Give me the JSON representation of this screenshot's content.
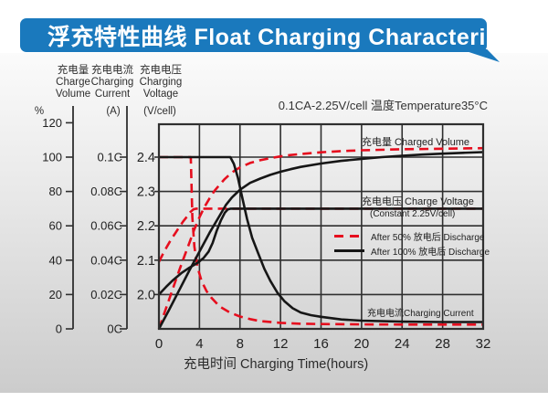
{
  "banner": {
    "title": "浮充特性曲线 Float Charging Characteristics",
    "bg_color": "#1a79bd",
    "text_color": "#ffffff"
  },
  "axes_header": {
    "volume": {
      "line1": "充电量",
      "line2": "Charge",
      "line3": "Volume",
      "unit": "%"
    },
    "current": {
      "line1": "充电电流",
      "line2": "Charging",
      "line3": "Current",
      "unit": "(A)"
    },
    "voltage": {
      "line1": "充电电压",
      "line2": "Charging",
      "line3": "Voltage",
      "unit": "(V/cell)"
    }
  },
  "chart_data": {
    "type": "line",
    "title": "浮充特性曲线 Float Charging Characteristics",
    "condition": "0.1CA-2.25V/cell  温度Temperature35°C",
    "xlabel": "充电时间 Charging Time(hours)",
    "xlim": [
      0,
      32
    ],
    "x_ticks": [
      0,
      4,
      8,
      12,
      16,
      20,
      24,
      28,
      32
    ],
    "grid": true,
    "voltage_axis": {
      "label": "充电电压 Charging Voltage (V/cell)",
      "ticks": [
        2.0,
        2.1,
        2.2,
        2.3,
        2.4
      ],
      "range_at_frame": [
        1.9,
        2.5
      ]
    },
    "volume_axis": {
      "label": "充电量 Charge Volume %",
      "ticks": [
        0,
        20,
        40,
        60,
        80,
        100,
        120
      ]
    },
    "current_axis": {
      "label": "充电电流 Charging Current (A)",
      "tick_values": [
        0,
        0.02,
        0.04,
        0.06,
        0.08,
        0.1
      ],
      "tick_labels": [
        "0C",
        "0.02C",
        "0.04C",
        "0.06C",
        "0.08C",
        "0.1C"
      ]
    },
    "annotations": {
      "charged_volume": "充电量 Charged Volume",
      "charge_voltage": "充电电压 Charge Voltage",
      "constant_voltage": "(Constant 2.25V/cell)",
      "charging_current": "充电电流Charging Current"
    },
    "legend": [
      {
        "label": "After 50% 放电后 Discharge",
        "color": "#e60e1e",
        "dash": true
      },
      {
        "label": "After 100% 放电后 Discharge",
        "color": "#161616",
        "dash": false
      }
    ],
    "legend_position": "inside middle-right",
    "series": [
      {
        "name": "Charged Volume after 50% discharge",
        "axis": "volume",
        "color": "#e60e1e",
        "dash": true,
        "points": [
          [
            0,
            0
          ],
          [
            0.5,
            8.5
          ],
          [
            1,
            17
          ],
          [
            1.5,
            25.5
          ],
          [
            2,
            34
          ],
          [
            2.5,
            42
          ],
          [
            3,
            50
          ],
          [
            3.5,
            58
          ],
          [
            4,
            65
          ],
          [
            4.5,
            71
          ],
          [
            5,
            76
          ],
          [
            5.5,
            80.5
          ],
          [
            6,
            84
          ],
          [
            6.5,
            87.3
          ],
          [
            7,
            90
          ],
          [
            7.5,
            92.3
          ],
          [
            8,
            94
          ],
          [
            9,
            96.6
          ],
          [
            10,
            98.2
          ],
          [
            11,
            99.4
          ],
          [
            12,
            100.4
          ],
          [
            13,
            101.2
          ],
          [
            14,
            101.8
          ],
          [
            16,
            102.8
          ],
          [
            18,
            103.5
          ],
          [
            20,
            104
          ],
          [
            24,
            104.6
          ],
          [
            28,
            104.9
          ],
          [
            32,
            105.2
          ]
        ]
      },
      {
        "name": "Charge Voltage after 50% discharge",
        "axis": "voltage",
        "color": "#e60e1e",
        "dash": true,
        "points": [
          [
            0,
            2.095
          ],
          [
            0.4,
            2.118
          ],
          [
            0.8,
            2.14
          ],
          [
            1.2,
            2.16
          ],
          [
            1.6,
            2.178
          ],
          [
            2,
            2.196
          ],
          [
            2.4,
            2.213
          ],
          [
            2.8,
            2.228
          ],
          [
            3.1,
            2.24
          ],
          [
            3.4,
            2.248
          ],
          [
            3.7,
            2.25
          ],
          [
            32,
            2.25
          ]
        ]
      },
      {
        "name": "Charging Current after 50% discharge",
        "axis": "current",
        "color": "#e60e1e",
        "dash": true,
        "points": [
          [
            0,
            0.1
          ],
          [
            3.15,
            0.1
          ],
          [
            3.3,
            0.065
          ],
          [
            3.5,
            0.048
          ],
          [
            3.8,
            0.036
          ],
          [
            4.2,
            0.028
          ],
          [
            4.7,
            0.022
          ],
          [
            5.2,
            0.018
          ],
          [
            6,
            0.013
          ],
          [
            7,
            0.0095
          ],
          [
            8,
            0.0072
          ],
          [
            9,
            0.0057
          ],
          [
            10,
            0.0045
          ],
          [
            12,
            0.0035
          ],
          [
            14,
            0.003
          ],
          [
            16,
            0.0028
          ],
          [
            20,
            0.0026
          ],
          [
            24,
            0.0025
          ],
          [
            28,
            0.0025
          ],
          [
            32,
            0.0025
          ]
        ]
      },
      {
        "name": "Charged Volume after 100% discharge",
        "axis": "volume",
        "color": "#161616",
        "dash": false,
        "points": [
          [
            0,
            0
          ],
          [
            1,
            11
          ],
          [
            2,
            22.5
          ],
          [
            3,
            34
          ],
          [
            4,
            45
          ],
          [
            5,
            56
          ],
          [
            6,
            66
          ],
          [
            6.6,
            72
          ],
          [
            7.2,
            76.5
          ],
          [
            8,
            81
          ],
          [
            9,
            85
          ],
          [
            10,
            87.5
          ],
          [
            11,
            89.7
          ],
          [
            12,
            91.5
          ],
          [
            13,
            93
          ],
          [
            14,
            94.3
          ],
          [
            16,
            96.3
          ],
          [
            18,
            97.8
          ],
          [
            20,
            99
          ],
          [
            22,
            100
          ],
          [
            24,
            100.8
          ],
          [
            26,
            101.5
          ],
          [
            28,
            102
          ],
          [
            30,
            102.5
          ],
          [
            32,
            102.9
          ]
        ]
      },
      {
        "name": "Charge Voltage after 100% discharge",
        "axis": "voltage",
        "color": "#161616",
        "dash": false,
        "points": [
          [
            0,
            2.0
          ],
          [
            0.7,
            2.022
          ],
          [
            1.4,
            2.042
          ],
          [
            2.2,
            2.062
          ],
          [
            3,
            2.078
          ],
          [
            3.8,
            2.092
          ],
          [
            4.4,
            2.106
          ],
          [
            4.9,
            2.125
          ],
          [
            5.3,
            2.15
          ],
          [
            5.7,
            2.185
          ],
          [
            6.1,
            2.215
          ],
          [
            6.5,
            2.238
          ],
          [
            6.8,
            2.248
          ],
          [
            7.1,
            2.25
          ],
          [
            32,
            2.25
          ]
        ]
      },
      {
        "name": "Charging Current after 100% discharge",
        "axis": "current",
        "color": "#161616",
        "dash": false,
        "points": [
          [
            0,
            0.1
          ],
          [
            7.05,
            0.1
          ],
          [
            7.4,
            0.096
          ],
          [
            7.8,
            0.088
          ],
          [
            8.2,
            0.077
          ],
          [
            8.7,
            0.064
          ],
          [
            9.2,
            0.053
          ],
          [
            9.8,
            0.044
          ],
          [
            10.4,
            0.035
          ],
          [
            11,
            0.028
          ],
          [
            11.7,
            0.021
          ],
          [
            12.4,
            0.016
          ],
          [
            13.2,
            0.012
          ],
          [
            14,
            0.0095
          ],
          [
            15,
            0.008
          ],
          [
            16,
            0.007
          ],
          [
            18,
            0.0055
          ],
          [
            20,
            0.0048
          ],
          [
            24,
            0.0042
          ],
          [
            28,
            0.004
          ],
          [
            32,
            0.004
          ]
        ]
      }
    ]
  }
}
